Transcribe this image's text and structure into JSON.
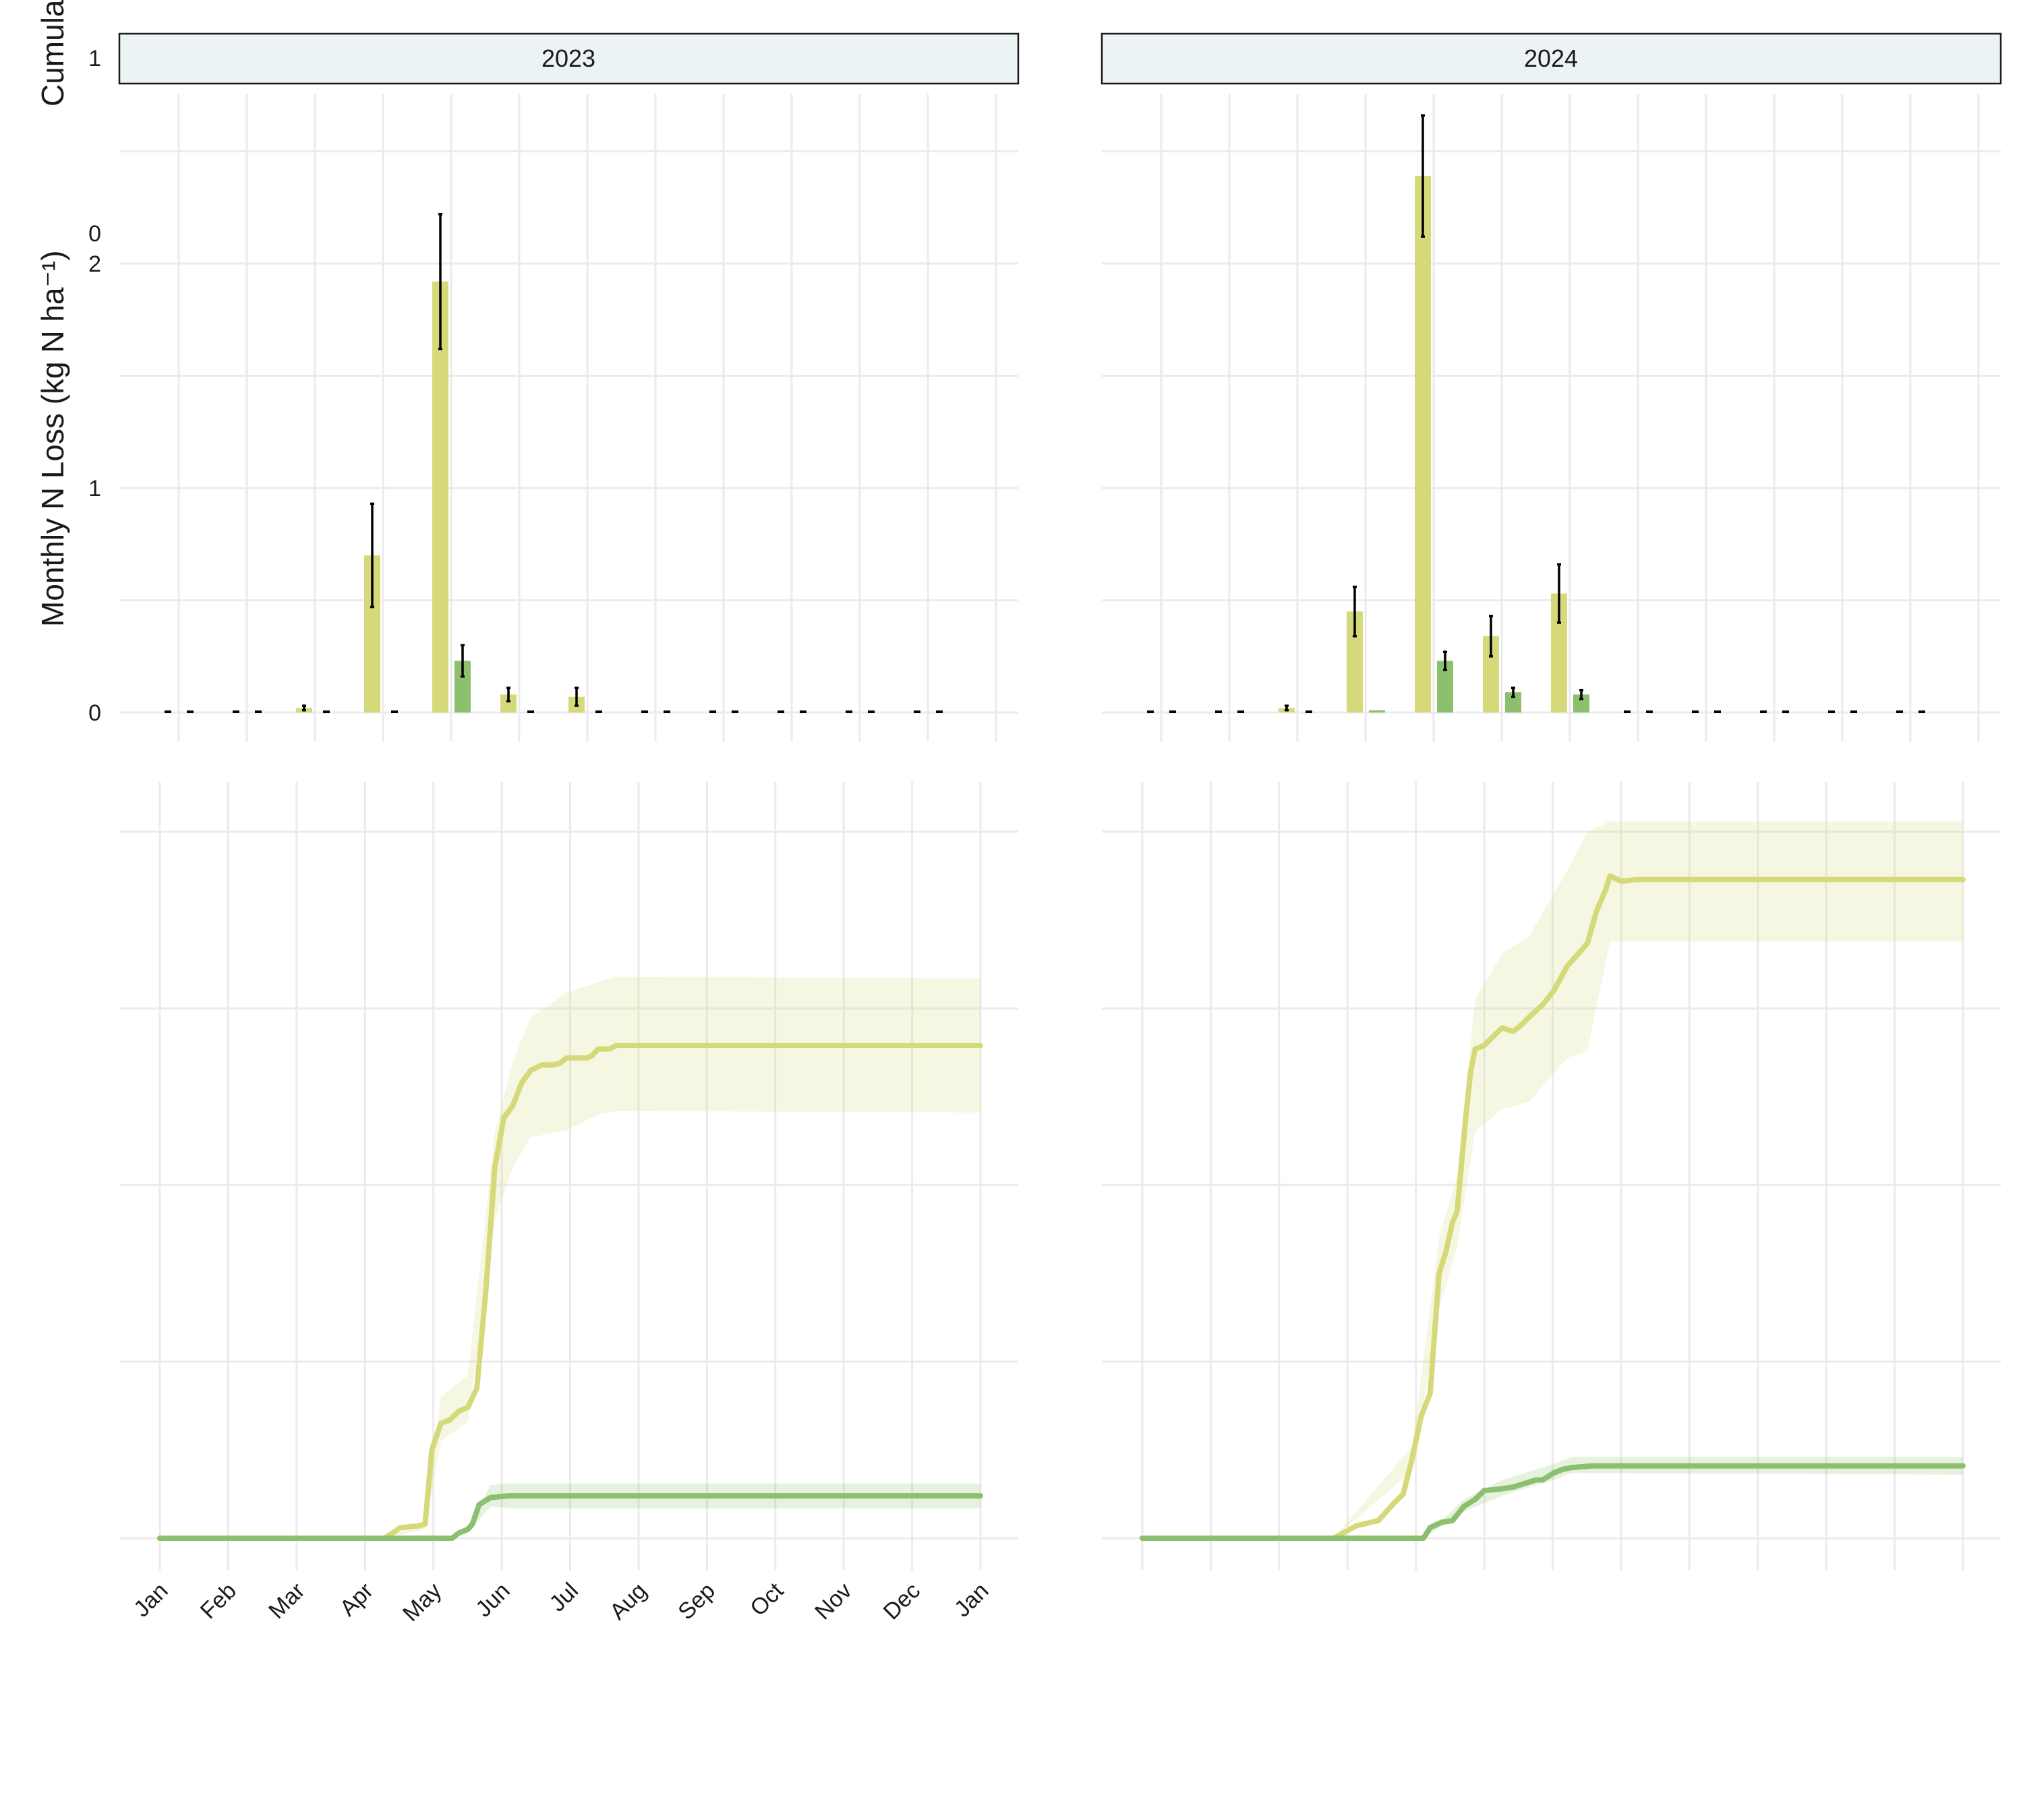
{
  "chart_data": {
    "type": "bar+line (faceted)",
    "facets": [
      "2023",
      "2024"
    ],
    "y_axis_titles": {
      "monthly": "Monthly N Loss (kg N ha⁻¹)",
      "cumulative": "Cumula"
    },
    "monthly_y_ticks": [
      "0",
      "1",
      "2"
    ],
    "monthly_ylim": [
      0,
      2.7
    ],
    "cumulative_y_ticks_visible": [
      "0",
      "1"
    ],
    "cumulative_ylim": [
      0,
      4
    ],
    "x_tick_labels": [
      "Jan",
      "Feb",
      "Mar",
      "Apr",
      "May",
      "Jun",
      "Jul",
      "Aug",
      "Sep",
      "Oct",
      "Nov",
      "Dec",
      "Jan"
    ],
    "grid": true,
    "legend": "none",
    "colors": {
      "series_a": "#d6d97a",
      "series_b": "#8cbf6e",
      "error_bar": "#000000",
      "strip_fill": "#ecf3f4"
    },
    "monthly": {
      "categories": [
        "Jan",
        "Feb",
        "Mar",
        "Apr",
        "May",
        "Jun",
        "Jul",
        "Aug",
        "Sep",
        "Oct",
        "Nov",
        "Dec"
      ],
      "panels": [
        {
          "facet": "2023",
          "series": [
            {
              "values": [
                0,
                0,
                0.02,
                0.7,
                1.92,
                0.08,
                0.07,
                0,
                0,
                0,
                0,
                0
              ],
              "errors": [
                0,
                0,
                0.01,
                0.23,
                0.3,
                0.03,
                0.04,
                0,
                0,
                0,
                0,
                0
              ]
            },
            {
              "values": [
                0,
                0,
                0,
                0,
                0.23,
                0,
                0,
                0,
                0,
                0,
                0,
                0
              ],
              "errors": [
                0,
                0,
                0,
                0,
                0.07,
                0,
                0,
                0,
                0,
                0,
                0,
                0
              ]
            }
          ]
        },
        {
          "facet": "2024",
          "series": [
            {
              "values": [
                0,
                0,
                0.02,
                0.45,
                2.39,
                0.34,
                0.53,
                0,
                0,
                0,
                0,
                0
              ],
              "errors": [
                0,
                0,
                0.01,
                0.11,
                0.27,
                0.09,
                0.13,
                0,
                0,
                0,
                0,
                0
              ]
            },
            {
              "values": [
                0,
                0,
                0,
                0.01,
                0.23,
                0.09,
                0.08,
                0,
                0,
                0,
                0,
                0
              ],
              "errors": [
                0,
                0,
                0,
                0,
                0.04,
                0.02,
                0.02,
                0,
                0,
                0,
                0,
                0
              ]
            }
          ]
        }
      ]
    },
    "cumulative": {
      "x_unit": "day of year",
      "panels": [
        {
          "facet": "2023",
          "series": [
            {
              "points": [
                [
                  0,
                  0
                ],
                [
                  100,
                  0
                ],
                [
                  107,
                  0.06
                ],
                [
                  115,
                  0.07
                ],
                [
                  118,
                  0.08
                ],
                [
                  121,
                  0.5
                ],
                [
                  125,
                  0.65
                ],
                [
                  129,
                  0.67
                ],
                [
                  133,
                  0.72
                ],
                [
                  137,
                  0.74
                ],
                [
                  141,
                  0.85
                ],
                [
                  145,
                  1.4
                ],
                [
                  149,
                  2.1
                ],
                [
                  153,
                  2.38
                ],
                [
                  157,
                  2.45
                ],
                [
                  161,
                  2.58
                ],
                [
                  165,
                  2.65
                ],
                [
                  170,
                  2.68
                ],
                [
                  175,
                  2.68
                ],
                [
                  178,
                  2.69
                ],
                [
                  181,
                  2.72
                ],
                [
                  190,
                  2.72
                ],
                [
                  192,
                  2.73
                ],
                [
                  195,
                  2.77
                ],
                [
                  200,
                  2.77
                ],
                [
                  203,
                  2.79
                ],
                [
                  365,
                  2.79
                ]
              ],
              "band": [
                [
                  0,
                  0,
                  0
                ],
                [
                  100,
                  0,
                  0
                ],
                [
                  118,
                  0.05,
                  0.1
                ],
                [
                  125,
                  0.55,
                  0.8
                ],
                [
                  137,
                  0.66,
                  0.92
                ],
                [
                  149,
                  1.8,
                  2.3
                ],
                [
                  157,
                  2.1,
                  2.7
                ],
                [
                  165,
                  2.27,
                  2.95
                ],
                [
                  181,
                  2.31,
                  3.09
                ],
                [
                  195,
                  2.4,
                  3.15
                ],
                [
                  203,
                  2.42,
                  3.18
                ],
                [
                  365,
                  2.41,
                  3.17
                ]
              ]
            },
            {
              "points": [
                [
                  0,
                  0
                ],
                [
                  130,
                  0
                ],
                [
                  133,
                  0.03
                ],
                [
                  137,
                  0.05
                ],
                [
                  139,
                  0.08
                ],
                [
                  142,
                  0.19
                ],
                [
                  147,
                  0.23
                ],
                [
                  155,
                  0.24
                ],
                [
                  365,
                  0.24
                ]
              ],
              "band": [
                [
                  0,
                  0,
                  0
                ],
                [
                  130,
                  0,
                  0
                ],
                [
                  139,
                  0.06,
                  0.1
                ],
                [
                  147,
                  0.18,
                  0.3
                ],
                [
                  155,
                  0.17,
                  0.31
                ],
                [
                  365,
                  0.17,
                  0.31
                ]
              ]
            }
          ]
        },
        {
          "facet": "2024",
          "series": [
            {
              "points": [
                [
                  0,
                  0
                ],
                [
                  85,
                  0
                ],
                [
                  95,
                  0.07
                ],
                [
                  105,
                  0.1
                ],
                [
                  112,
                  0.2
                ],
                [
                  116,
                  0.25
                ],
                [
                  120,
                  0.45
                ],
                [
                  124,
                  0.69
                ],
                [
                  128,
                  0.82
                ],
                [
                  132,
                  1.5
                ],
                [
                  135,
                  1.62
                ],
                [
                  138,
                  1.79
                ],
                [
                  140,
                  1.85
                ],
                [
                  144,
                  2.4
                ],
                [
                  146,
                  2.64
                ],
                [
                  148,
                  2.77
                ],
                [
                  152,
                  2.79
                ],
                [
                  160,
                  2.89
                ],
                [
                  165,
                  2.87
                ],
                [
                  168,
                  2.9
                ],
                [
                  172,
                  2.95
                ],
                [
                  178,
                  3.02
                ],
                [
                  183,
                  3.1
                ],
                [
                  189,
                  3.24
                ],
                [
                  194,
                  3.31
                ],
                [
                  198,
                  3.37
                ],
                [
                  202,
                  3.55
                ],
                [
                  206,
                  3.67
                ],
                [
                  208,
                  3.75
                ],
                [
                  213,
                  3.72
                ],
                [
                  220,
                  3.73
                ],
                [
                  365,
                  3.73
                ]
              ],
              "band": [
                [
                  0,
                  0,
                  0
                ],
                [
                  85,
                  0,
                  0
                ],
                [
                  120,
                  0.38,
                  0.52
                ],
                [
                  132,
                  1.3,
                  1.7
                ],
                [
                  140,
                  1.65,
                  2.05
                ],
                [
                  148,
                  2.3,
                  3.05
                ],
                [
                  160,
                  2.43,
                  3.31
                ],
                [
                  172,
                  2.47,
                  3.41
                ],
                [
                  189,
                  2.72,
                  3.78
                ],
                [
                  198,
                  2.76,
                  4.0
                ],
                [
                  208,
                  3.38,
                  4.06
                ],
                [
                  365,
                  3.38,
                  4.06
                ]
              ]
            },
            {
              "points": [
                [
                  0,
                  0
                ],
                [
                  125,
                  0
                ],
                [
                  128,
                  0.06
                ],
                [
                  133,
                  0.09
                ],
                [
                  138,
                  0.1
                ],
                [
                  143,
                  0.18
                ],
                [
                  148,
                  0.22
                ],
                [
                  152,
                  0.27
                ],
                [
                  160,
                  0.28
                ],
                [
                  165,
                  0.29
                ],
                [
                  170,
                  0.31
                ],
                [
                  175,
                  0.33
                ],
                [
                  178,
                  0.33
                ],
                [
                  183,
                  0.37
                ],
                [
                  187,
                  0.39
                ],
                [
                  191,
                  0.4
                ],
                [
                  200,
                  0.41
                ],
                [
                  365,
                  0.41
                ]
              ],
              "band": [
                [
                  0,
                  0,
                  0
                ],
                [
                  125,
                  0,
                  0
                ],
                [
                  143,
                  0.15,
                  0.22
                ],
                [
                  160,
                  0.24,
                  0.33
                ],
                [
                  183,
                  0.33,
                  0.42
                ],
                [
                  191,
                  0.37,
                  0.46
                ],
                [
                  365,
                  0.36,
                  0.46
                ]
              ]
            }
          ]
        }
      ]
    }
  }
}
